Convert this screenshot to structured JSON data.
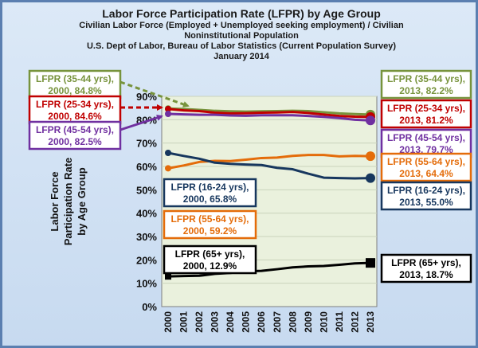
{
  "chart_data": {
    "type": "line",
    "title": "Labor Force Participation Rate (LFPR) by Age Group",
    "subtitle_lines": [
      "Civilian Labor Force (Employed + Unemployed seeking employment) / Civilian",
      "Noninstitutional Population",
      "U.S. Dept of Labor, Bureau of Labor Statistics (Current Population Survey)",
      "January 2014"
    ],
    "ylabel_lines": [
      "Labor Force",
      "Participation Rate",
      "by Age Group"
    ],
    "ylim": [
      0,
      90
    ],
    "yticks": [
      "0%",
      "10%",
      "20%",
      "30%",
      "40%",
      "50%",
      "60%",
      "70%",
      "80%",
      "90%"
    ],
    "x": [
      2000,
      2001,
      2002,
      2003,
      2004,
      2005,
      2006,
      2007,
      2008,
      2009,
      2010,
      2011,
      2012,
      2013
    ],
    "xtick_labels": [
      "2000",
      "2001",
      "2002",
      "2003",
      "2004",
      "2005",
      "2006",
      "2007",
      "2008",
      "2009",
      "2010",
      "2011",
      "2012",
      "2013"
    ],
    "series": [
      {
        "key": "35-44",
        "color": "#77933c",
        "values": [
          84.8,
          84.6,
          84.2,
          83.8,
          83.6,
          83.5,
          83.6,
          83.7,
          83.8,
          83.7,
          83.2,
          82.7,
          82.4,
          82.2
        ],
        "start_label": [
          "LFPR (35-44 yrs),",
          "2000, 84.8%"
        ],
        "end_label": [
          "LFPR (35-44 yrs),",
          "2013, 82.2%"
        ]
      },
      {
        "key": "25-34",
        "color": "#c00000",
        "values": [
          84.6,
          84.0,
          83.7,
          83.0,
          82.7,
          82.8,
          83.0,
          83.1,
          83.3,
          82.9,
          82.2,
          81.6,
          81.3,
          81.2
        ],
        "start_label": [
          "LFPR (25-34 yrs),",
          "2000, 84.6%"
        ],
        "end_label": [
          "LFPR (25-34 yrs),",
          "2013, 81.2%"
        ]
      },
      {
        "key": "45-54",
        "color": "#7030a0",
        "values": [
          82.5,
          82.3,
          82.1,
          82.1,
          81.8,
          81.7,
          81.9,
          81.9,
          81.9,
          81.6,
          81.2,
          80.7,
          80.0,
          79.7
        ],
        "start_label": [
          "LFPR (45-54 yrs),",
          "2000, 82.5%"
        ],
        "end_label": [
          "LFPR (45-54 yrs),",
          "2013, 79.7%"
        ]
      },
      {
        "key": "55-64",
        "color": "#e46c0a",
        "values": [
          59.2,
          60.4,
          61.9,
          62.4,
          62.3,
          62.9,
          63.6,
          63.8,
          64.5,
          64.9,
          64.9,
          64.3,
          64.5,
          64.4
        ],
        "start_label": [
          "LFPR (55-64 yrs),",
          "2000, 59.2%"
        ],
        "end_label": [
          "LFPR (55-64 yrs),",
          "2013, 64.4%"
        ]
      },
      {
        "key": "16-24",
        "color": "#17375e",
        "values": [
          65.8,
          64.5,
          63.3,
          61.6,
          61.1,
          60.8,
          60.6,
          59.4,
          58.8,
          56.9,
          55.2,
          55.0,
          54.9,
          55.0
        ],
        "start_label": [
          "LFPR (16-24 yrs),",
          "2000, 65.8%"
        ],
        "end_label": [
          "LFPR (16-24 yrs),",
          "2013, 55.0%"
        ]
      },
      {
        "key": "65+",
        "color": "#000000",
        "values": [
          12.9,
          13.1,
          13.2,
          14.0,
          14.4,
          15.1,
          15.3,
          16.0,
          16.8,
          17.2,
          17.4,
          17.9,
          18.5,
          18.7
        ],
        "start_label": [
          "LFPR (65+ yrs),",
          "2000, 12.9%"
        ],
        "end_label": [
          "LFPR (65+ yrs),",
          "2013, 18.7%"
        ]
      }
    ]
  }
}
